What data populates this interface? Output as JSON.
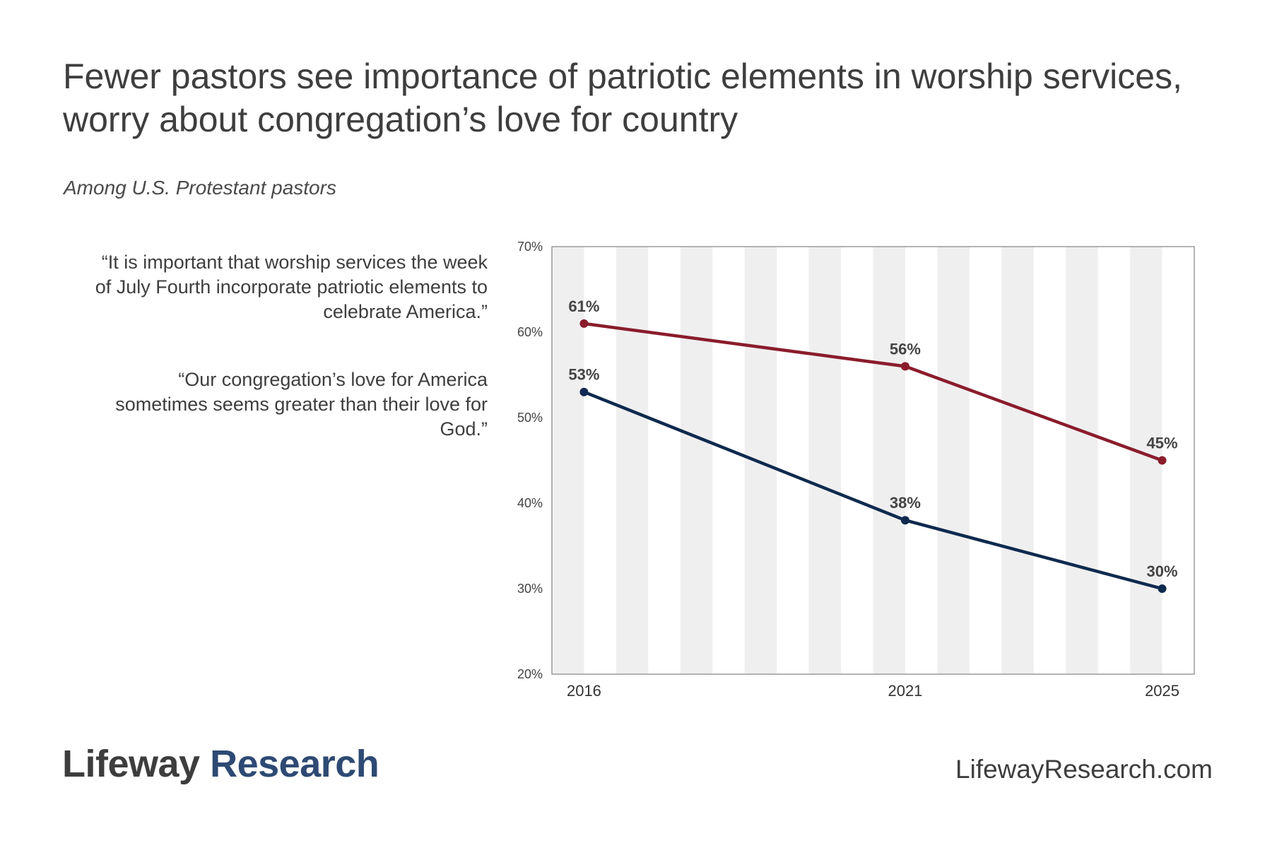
{
  "title": "Fewer pastors see importance of patriotic elements in worship services, worry about congregation’s love for country",
  "subtitle": "Among U.S. Protestant pastors",
  "footer": {
    "brand_part1": "Lifeway",
    "brand_part2": "Research",
    "website": "LifewayResearch.com"
  },
  "chart_data": {
    "type": "line",
    "x": [
      "2016",
      "2021",
      "2025"
    ],
    "x_numeric": [
      2016,
      2021,
      2025
    ],
    "xlim": [
      2015.5,
      2025.5
    ],
    "ylim": [
      20,
      70
    ],
    "yticks": [
      "20%",
      "30%",
      "40%",
      "50%",
      "60%",
      "70%"
    ],
    "ytick_values": [
      20,
      30,
      40,
      50,
      60,
      70
    ],
    "series": [
      {
        "name": "“It is important that worship services the week of July Fourth incorporate patriotic elements to celebrate America.”",
        "values": [
          61,
          56,
          45
        ],
        "labels": [
          "61%",
          "56%",
          "45%"
        ],
        "color": "#8a1c2b"
      },
      {
        "name": "“Our congregation’s love for America sometimes seems greater than their love for God.”",
        "values": [
          53,
          38,
          30
        ],
        "labels": [
          "53%",
          "38%",
          "30%"
        ],
        "color": "#0e2a4f"
      }
    ],
    "background_band_color": "#efefef",
    "legend_position": "left"
  }
}
